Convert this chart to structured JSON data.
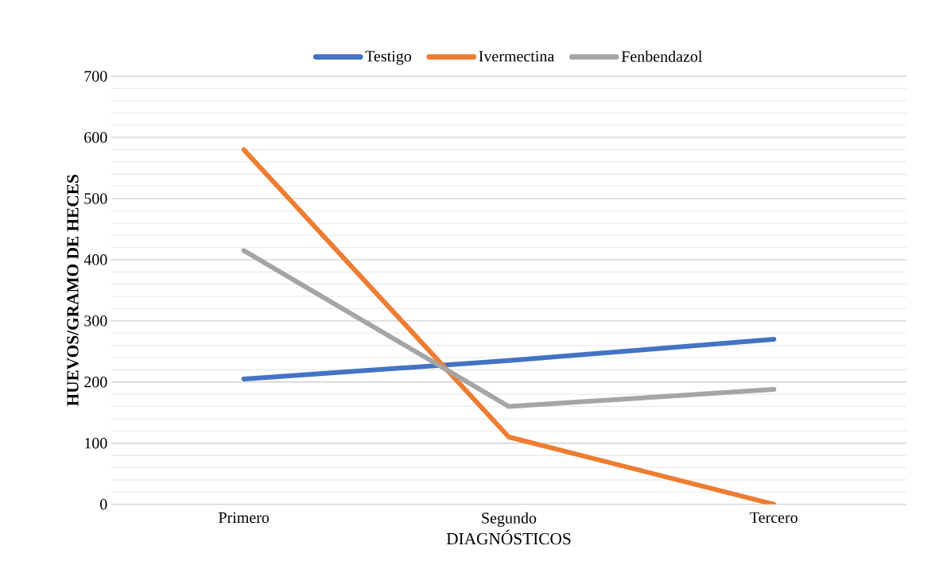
{
  "chart_data": {
    "type": "line",
    "xlabel": "DIAGNÓSTICOS",
    "ylabel": "HUEVOS/GRAMO DE HECES",
    "categories": [
      "Primero",
      "Segundo",
      "Tercero"
    ],
    "series": [
      {
        "name": "Testigo",
        "color": "#4472c4",
        "values": [
          205,
          235,
          270
        ]
      },
      {
        "name": "Ivermectina",
        "color": "#ed7d31",
        "values": [
          580,
          110,
          0
        ]
      },
      {
        "name": "Fenbendazol",
        "color": "#a5a5a5",
        "values": [
          415,
          160,
          188
        ]
      }
    ],
    "ylim": [
      0,
      700
    ],
    "yticks": [
      0,
      100,
      200,
      300,
      400,
      500,
      600,
      700
    ],
    "grid": "y",
    "legend": "top",
    "marker": "none",
    "line_style": "solid"
  }
}
